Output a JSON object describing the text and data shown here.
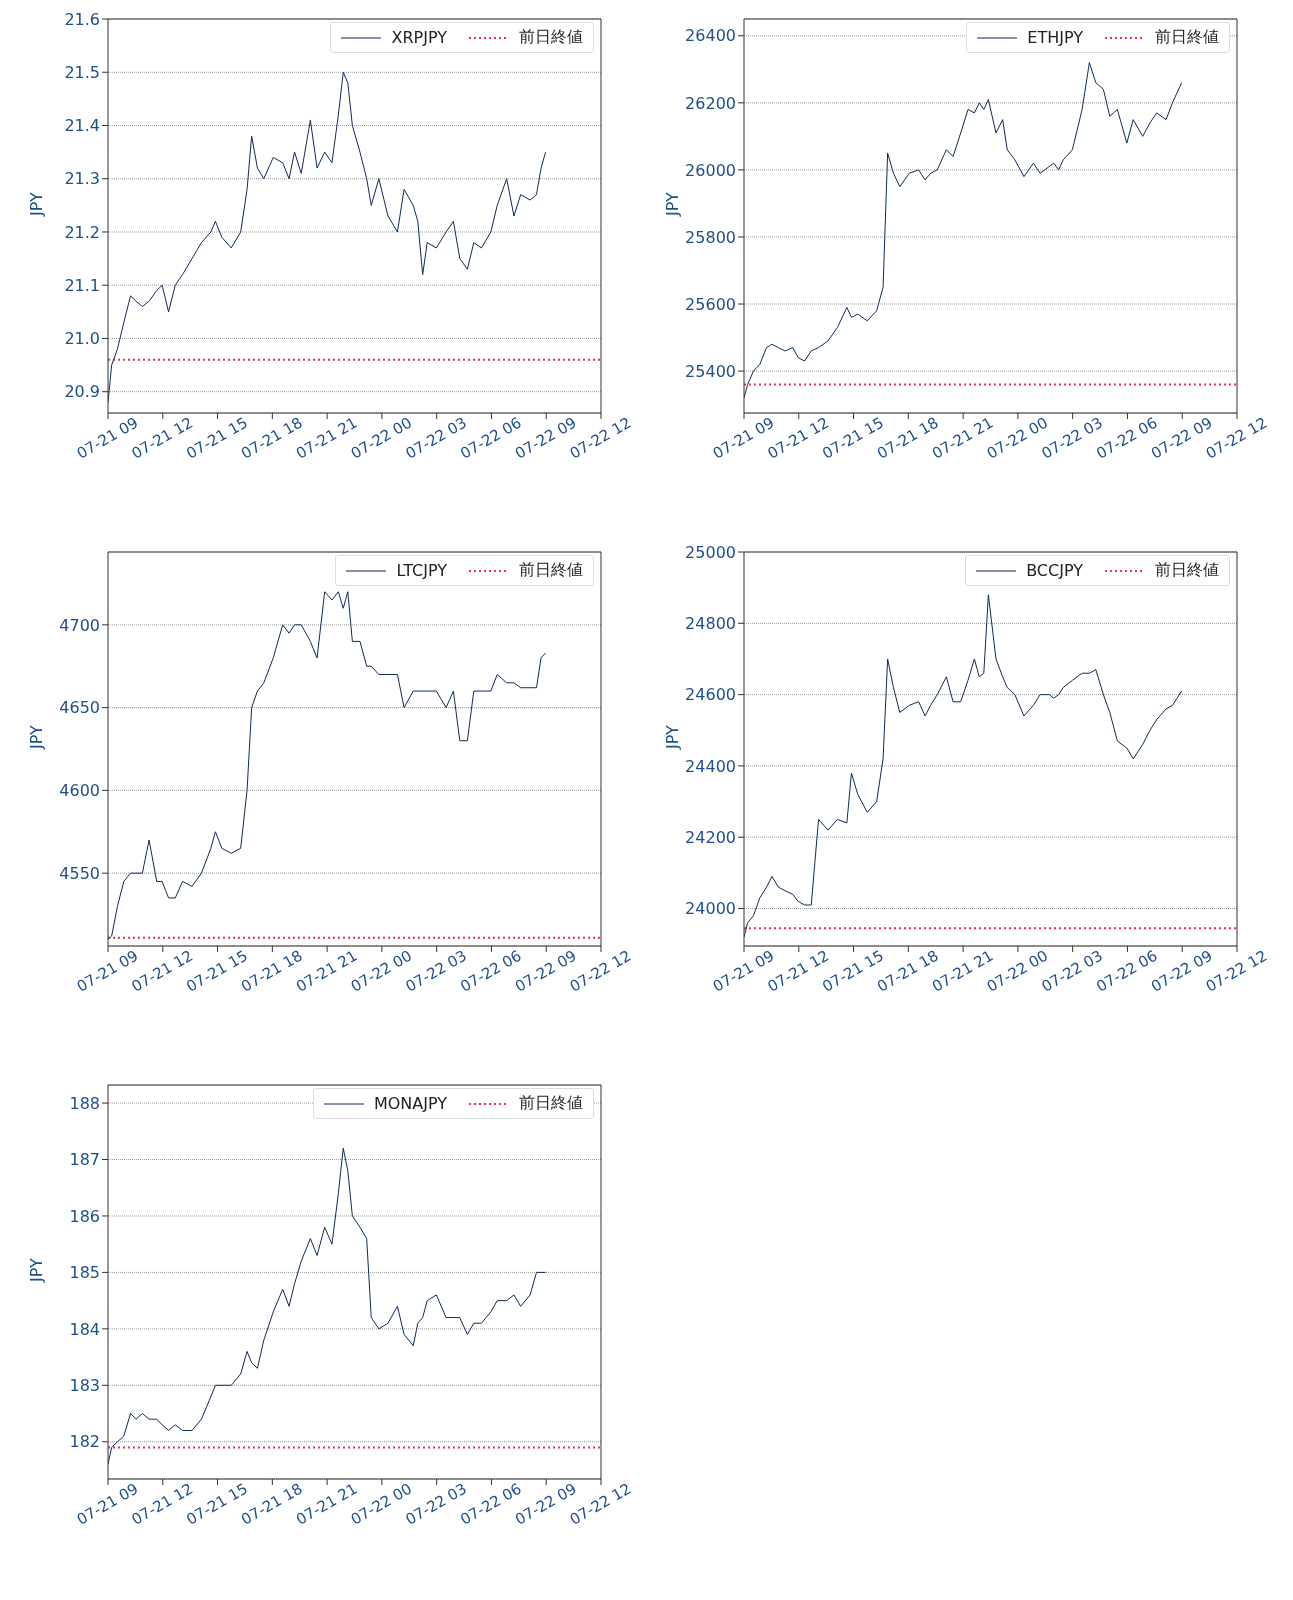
{
  "chart_data": [
    {
      "type": "line",
      "ylabel": "JPY",
      "legend": "top right",
      "grid": "y",
      "xlim": [
        "--07-21T09:00",
        "--07-22T12:00"
      ],
      "xticks": [
        {
          "value": "--07-21T09:00",
          "label": "07-21 09"
        },
        {
          "value": "--07-21T12:00",
          "label": "07-21 12"
        },
        {
          "value": "--07-21T15:00",
          "label": "07-21 15"
        },
        {
          "value": "--07-21T18:00",
          "label": "07-21 18"
        },
        {
          "value": "--07-21T21:00",
          "label": "07-21 21"
        },
        {
          "value": "--07-22T00:00",
          "label": "07-22 00"
        },
        {
          "value": "--07-22T03:00",
          "label": "07-22 03"
        },
        {
          "value": "--07-22T06:00",
          "label": "07-22 06"
        },
        {
          "value": "--07-22T09:00",
          "label": "07-22 09"
        },
        {
          "value": "--07-22T12:00",
          "label": "07-22 12"
        }
      ],
      "ylim": [
        20.86,
        21.6
      ],
      "yticks": [
        20.9,
        {
          "value": 21,
          "label": "21.0"
        },
        21.1,
        21.2,
        21.3,
        21.4,
        21.5,
        21.6
      ],
      "x": [
        "--07-21T09:00",
        "--07-21T09:12",
        "--07-21T09:31",
        "--07-21T09:52",
        "--07-21T10:14",
        "--07-21T10:32",
        "--07-21T10:53",
        "--07-21T11:15",
        "--07-21T11:40",
        "--07-21T11:58",
        "--07-21T12:19",
        "--07-21T12:41",
        "--07-21T13:05",
        "--07-21T13:36",
        "--07-21T14:07",
        "--07-21T14:38",
        "--07-21T14:53",
        "--07-21T15:14",
        "--07-21T15:45",
        "--07-21T16:16",
        "--07-21T16:37",
        "--07-21T16:52",
        "--07-21T17:11",
        "--07-21T17:32",
        "--07-21T18:03",
        "--07-21T18:34",
        "--07-21T18:55",
        "--07-21T19:13",
        "--07-21T19:35",
        "--07-21T20:05",
        "--07-21T20:27",
        "--07-21T20:52",
        "--07-21T21:16",
        "--07-21T21:37",
        "--07-21T21:53",
        "--07-21T22:08",
        "--07-21T22:23",
        "--07-21T22:48",
        "--07-21T23:10",
        "--07-21T23:25",
        "--07-21T23:50",
        "--07-22T00:20",
        "--07-22T00:51",
        "--07-22T01:13",
        "--07-22T01:43",
        "--07-22T01:58",
        "--07-22T02:14",
        "--07-22T02:29",
        "--07-22T02:59",
        "--07-22T03:31",
        "--07-22T03:55",
        "--07-22T04:16",
        "--07-22T04:41",
        "--07-22T05:02",
        "--07-22T05:27",
        "--07-22T05:58",
        "--07-22T06:19",
        "--07-22T06:50",
        "--07-22T07:14",
        "--07-22T07:36",
        "--07-22T08:07",
        "--07-22T08:28",
        "--07-22T08:43",
        "--07-22T08:58"
      ],
      "series": [
        {
          "name": "XRPJPY",
          "color": "#0d2b5a",
          "values": [
            20.88,
            20.95,
            20.98,
            21.03,
            21.08,
            21.07,
            21.06,
            21.07,
            21.09,
            21.1,
            21.05,
            21.1,
            21.12,
            21.15,
            21.18,
            21.2,
            21.22,
            21.19,
            21.17,
            21.2,
            21.28,
            21.38,
            21.32,
            21.3,
            21.34,
            21.33,
            21.3,
            21.35,
            21.31,
            21.41,
            21.32,
            21.35,
            21.33,
            21.42,
            21.5,
            21.48,
            21.4,
            21.35,
            21.3,
            21.25,
            21.3,
            21.23,
            21.2,
            21.28,
            21.25,
            21.22,
            21.12,
            21.18,
            21.17,
            21.2,
            21.22,
            21.15,
            21.13,
            21.18,
            21.17,
            21.2,
            21.25,
            21.3,
            21.23,
            21.27,
            21.26,
            21.27,
            21.32,
            21.35
          ]
        }
      ],
      "ref_lines": [
        {
          "axis": "y",
          "value": 20.96,
          "label": "前日終値",
          "color": "#e8305a",
          "line_style": "dotted"
        }
      ]
    },
    {
      "type": "line",
      "ylabel": "JPY",
      "legend": "top right",
      "grid": "y",
      "xlim": [
        "--07-21T09:00",
        "--07-22T12:00"
      ],
      "xticks": [
        {
          "value": "--07-21T09:00",
          "label": "07-21 09"
        },
        {
          "value": "--07-21T12:00",
          "label": "07-21 12"
        },
        {
          "value": "--07-21T15:00",
          "label": "07-21 15"
        },
        {
          "value": "--07-21T18:00",
          "label": "07-21 18"
        },
        {
          "value": "--07-21T21:00",
          "label": "07-21 21"
        },
        {
          "value": "--07-22T00:00",
          "label": "07-22 00"
        },
        {
          "value": "--07-22T03:00",
          "label": "07-22 03"
        },
        {
          "value": "--07-22T06:00",
          "label": "07-22 06"
        },
        {
          "value": "--07-22T09:00",
          "label": "07-22 09"
        },
        {
          "value": "--07-22T12:00",
          "label": "07-22 12"
        }
      ],
      "ylim": [
        25275,
        26450
      ],
      "yticks": [
        25400,
        25600,
        25800,
        26000,
        26200,
        26400
      ],
      "x": [
        "--07-21T09:00",
        "--07-21T09:12",
        "--07-21T09:31",
        "--07-21T09:52",
        "--07-21T10:14",
        "--07-21T10:32",
        "--07-21T10:53",
        "--07-21T11:15",
        "--07-21T11:40",
        "--07-21T11:58",
        "--07-21T12:19",
        "--07-21T12:41",
        "--07-21T13:05",
        "--07-21T13:36",
        "--07-21T14:07",
        "--07-21T14:38",
        "--07-21T14:53",
        "--07-21T15:14",
        "--07-21T15:45",
        "--07-21T16:16",
        "--07-21T16:37",
        "--07-21T16:52",
        "--07-21T17:11",
        "--07-21T17:32",
        "--07-21T18:03",
        "--07-21T18:34",
        "--07-21T18:55",
        "--07-21T19:13",
        "--07-21T19:35",
        "--07-21T20:05",
        "--07-21T20:27",
        "--07-21T20:52",
        "--07-21T21:16",
        "--07-21T21:37",
        "--07-21T21:53",
        "--07-21T22:08",
        "--07-21T22:23",
        "--07-21T22:48",
        "--07-21T23:10",
        "--07-21T23:25",
        "--07-21T23:50",
        "--07-22T00:20",
        "--07-22T00:51",
        "--07-22T01:13",
        "--07-22T01:43",
        "--07-22T01:58",
        "--07-22T02:14",
        "--07-22T02:29",
        "--07-22T02:59",
        "--07-22T03:31",
        "--07-22T03:55",
        "--07-22T04:16",
        "--07-22T04:41",
        "--07-22T05:02",
        "--07-22T05:27",
        "--07-22T05:58",
        "--07-22T06:19",
        "--07-22T06:50",
        "--07-22T07:14",
        "--07-22T07:36",
        "--07-22T08:07",
        "--07-22T08:28",
        "--07-22T08:43",
        "--07-22T08:58"
      ],
      "series": [
        {
          "name": "ETHJPY",
          "color": "#0d2b5a",
          "values": [
            25320,
            25360,
            25400,
            25420,
            25470,
            25480,
            25470,
            25460,
            25470,
            25440,
            25430,
            25460,
            25470,
            25490,
            25530,
            25590,
            25560,
            25570,
            25550,
            25580,
            25650,
            26050,
            25990,
            25950,
            25990,
            26000,
            25970,
            25990,
            26000,
            26060,
            26040,
            26110,
            26180,
            26170,
            26200,
            26180,
            26210,
            26110,
            26150,
            26060,
            26030,
            25980,
            26020,
            25990,
            26010,
            26020,
            26000,
            26030,
            26060,
            26180,
            26320,
            26260,
            26240,
            26160,
            26180,
            26080,
            26150,
            26100,
            26140,
            26170,
            26150,
            26200,
            26230,
            26260
          ]
        }
      ],
      "ref_lines": [
        {
          "axis": "y",
          "value": 25360,
          "label": "前日終値",
          "color": "#e8305a",
          "line_style": "dotted"
        }
      ]
    },
    {
      "type": "line",
      "ylabel": "JPY",
      "legend": "top right",
      "grid": "y",
      "xlim": [
        "--07-21T09:00",
        "--07-22T12:00"
      ],
      "xticks": [
        {
          "value": "--07-21T09:00",
          "label": "07-21 09"
        },
        {
          "value": "--07-21T12:00",
          "label": "07-21 12"
        },
        {
          "value": "--07-21T15:00",
          "label": "07-21 15"
        },
        {
          "value": "--07-21T18:00",
          "label": "07-21 18"
        },
        {
          "value": "--07-21T21:00",
          "label": "07-21 21"
        },
        {
          "value": "--07-22T00:00",
          "label": "07-22 00"
        },
        {
          "value": "--07-22T03:00",
          "label": "07-22 03"
        },
        {
          "value": "--07-22T06:00",
          "label": "07-22 06"
        },
        {
          "value": "--07-22T09:00",
          "label": "07-22 09"
        },
        {
          "value": "--07-22T12:00",
          "label": "07-22 12"
        }
      ],
      "ylim": [
        4506,
        4744
      ],
      "yticks": [
        4550,
        4600,
        4650,
        4700
      ],
      "x": [
        "--07-21T09:00",
        "--07-21T09:12",
        "--07-21T09:31",
        "--07-21T09:52",
        "--07-21T10:14",
        "--07-21T10:32",
        "--07-21T10:53",
        "--07-21T11:15",
        "--07-21T11:40",
        "--07-21T11:58",
        "--07-21T12:19",
        "--07-21T12:41",
        "--07-21T13:05",
        "--07-21T13:36",
        "--07-21T14:07",
        "--07-21T14:38",
        "--07-21T14:53",
        "--07-21T15:14",
        "--07-21T15:45",
        "--07-21T16:16",
        "--07-21T16:37",
        "--07-21T16:52",
        "--07-21T17:11",
        "--07-21T17:32",
        "--07-21T18:03",
        "--07-21T18:34",
        "--07-21T18:55",
        "--07-21T19:13",
        "--07-21T19:35",
        "--07-21T20:05",
        "--07-21T20:27",
        "--07-21T20:52",
        "--07-21T21:16",
        "--07-21T21:37",
        "--07-21T21:53",
        "--07-21T22:08",
        "--07-21T22:23",
        "--07-21T22:48",
        "--07-21T23:10",
        "--07-21T23:25",
        "--07-21T23:50",
        "--07-22T00:20",
        "--07-22T00:51",
        "--07-22T01:13",
        "--07-22T01:43",
        "--07-22T01:58",
        "--07-22T02:14",
        "--07-22T02:29",
        "--07-22T02:59",
        "--07-22T03:31",
        "--07-22T03:55",
        "--07-22T04:16",
        "--07-22T04:41",
        "--07-22T05:02",
        "--07-22T05:27",
        "--07-22T05:58",
        "--07-22T06:19",
        "--07-22T06:50",
        "--07-22T07:14",
        "--07-22T07:36",
        "--07-22T08:07",
        "--07-22T08:28",
        "--07-22T08:43",
        "--07-22T08:58"
      ],
      "series": [
        {
          "name": "LTCJPY",
          "color": "#0d2b5a",
          "values": [
            4510,
            4512,
            4530,
            4545,
            4550,
            4550,
            4550,
            4570,
            4545,
            4545,
            4535,
            4535,
            4545,
            4542,
            4550,
            4565,
            4575,
            4565,
            4562,
            4565,
            4600,
            4650,
            4660,
            4665,
            4680,
            4700,
            4695,
            4700,
            4700,
            4690,
            4680,
            4720,
            4715,
            4720,
            4710,
            4720,
            4690,
            4690,
            4675,
            4675,
            4670,
            4670,
            4670,
            4650,
            4660,
            4660,
            4660,
            4660,
            4660,
            4650,
            4660,
            4630,
            4630,
            4660,
            4660,
            4660,
            4670,
            4665,
            4665,
            4662,
            4662,
            4662,
            4680,
            4683
          ]
        }
      ],
      "ref_lines": [
        {
          "axis": "y",
          "value": 4511,
          "label": "前日終値",
          "color": "#e8305a",
          "line_style": "dotted"
        }
      ]
    },
    {
      "type": "line",
      "ylabel": "JPY",
      "legend": "top right",
      "grid": "y",
      "xlim": [
        "--07-21T09:00",
        "--07-22T12:00"
      ],
      "xticks": [
        {
          "value": "--07-21T09:00",
          "label": "07-21 09"
        },
        {
          "value": "--07-21T12:00",
          "label": "07-21 12"
        },
        {
          "value": "--07-21T15:00",
          "label": "07-21 15"
        },
        {
          "value": "--07-21T18:00",
          "label": "07-21 18"
        },
        {
          "value": "--07-21T21:00",
          "label": "07-21 21"
        },
        {
          "value": "--07-22T00:00",
          "label": "07-22 00"
        },
        {
          "value": "--07-22T03:00",
          "label": "07-22 03"
        },
        {
          "value": "--07-22T06:00",
          "label": "07-22 06"
        },
        {
          "value": "--07-22T09:00",
          "label": "07-22 09"
        },
        {
          "value": "--07-22T12:00",
          "label": "07-22 12"
        }
      ],
      "ylim": [
        23895,
        25000
      ],
      "yticks": [
        24000,
        24200,
        24400,
        24600,
        24800,
        25000
      ],
      "x": [
        "--07-21T09:00",
        "--07-21T09:12",
        "--07-21T09:31",
        "--07-21T09:52",
        "--07-21T10:14",
        "--07-21T10:32",
        "--07-21T10:53",
        "--07-21T11:15",
        "--07-21T11:40",
        "--07-21T11:58",
        "--07-21T12:19",
        "--07-21T12:41",
        "--07-21T13:05",
        "--07-21T13:36",
        "--07-21T14:07",
        "--07-21T14:38",
        "--07-21T14:53",
        "--07-21T15:14",
        "--07-21T15:45",
        "--07-21T16:16",
        "--07-21T16:37",
        "--07-21T16:52",
        "--07-21T17:11",
        "--07-21T17:32",
        "--07-21T18:03",
        "--07-21T18:34",
        "--07-21T18:55",
        "--07-21T19:13",
        "--07-21T19:35",
        "--07-21T20:05",
        "--07-21T20:27",
        "--07-21T20:52",
        "--07-21T21:16",
        "--07-21T21:37",
        "--07-21T21:53",
        "--07-21T22:08",
        "--07-21T22:23",
        "--07-21T22:48",
        "--07-21T23:10",
        "--07-21T23:25",
        "--07-21T23:50",
        "--07-22T00:20",
        "--07-22T00:51",
        "--07-22T01:13",
        "--07-22T01:43",
        "--07-22T01:58",
        "--07-22T02:14",
        "--07-22T02:29",
        "--07-22T02:59",
        "--07-22T03:31",
        "--07-22T03:55",
        "--07-22T04:16",
        "--07-22T04:41",
        "--07-22T05:02",
        "--07-22T05:27",
        "--07-22T05:58",
        "--07-22T06:19",
        "--07-22T06:50",
        "--07-22T07:14",
        "--07-22T07:36",
        "--07-22T08:07",
        "--07-22T08:28",
        "--07-22T08:43",
        "--07-22T08:58"
      ],
      "series": [
        {
          "name": "BCCJPY",
          "color": "#0d2b5a",
          "values": [
            23920,
            23960,
            23980,
            24030,
            24060,
            24090,
            24060,
            24050,
            24040,
            24020,
            24010,
            24010,
            24250,
            24220,
            24250,
            24240,
            24380,
            24320,
            24270,
            24300,
            24420,
            24700,
            24620,
            24550,
            24570,
            24580,
            24540,
            24570,
            24600,
            24650,
            24580,
            24580,
            24640,
            24700,
            24650,
            24660,
            24880,
            24700,
            24650,
            24620,
            24600,
            24540,
            24570,
            24600,
            24600,
            24590,
            24600,
            24620,
            24640,
            24660,
            24660,
            24670,
            24600,
            24550,
            24470,
            24450,
            24420,
            24460,
            24500,
            24530,
            24560,
            24570,
            24590,
            24610
          ]
        }
      ],
      "ref_lines": [
        {
          "axis": "y",
          "value": 23945,
          "label": "前日終値",
          "color": "#e8305a",
          "line_style": "dotted"
        }
      ]
    },
    {
      "type": "line",
      "ylabel": "JPY",
      "legend": "top right",
      "grid": "y",
      "xlim": [
        "--07-21T09:00",
        "--07-22T12:00"
      ],
      "xticks": [
        {
          "value": "--07-21T09:00",
          "label": "07-21 09"
        },
        {
          "value": "--07-21T12:00",
          "label": "07-21 12"
        },
        {
          "value": "--07-21T15:00",
          "label": "07-21 15"
        },
        {
          "value": "--07-21T18:00",
          "label": "07-21 18"
        },
        {
          "value": "--07-21T21:00",
          "label": "07-21 21"
        },
        {
          "value": "--07-22T00:00",
          "label": "07-22 00"
        },
        {
          "value": "--07-22T03:00",
          "label": "07-22 03"
        },
        {
          "value": "--07-22T06:00",
          "label": "07-22 06"
        },
        {
          "value": "--07-22T09:00",
          "label": "07-22 09"
        },
        {
          "value": "--07-22T12:00",
          "label": "07-22 12"
        }
      ],
      "ylim": [
        181.34,
        188.32
      ],
      "yticks": [
        182,
        183,
        184,
        185,
        186,
        187,
        188
      ],
      "x": [
        "--07-21T09:00",
        "--07-21T09:12",
        "--07-21T09:31",
        "--07-21T09:52",
        "--07-21T10:14",
        "--07-21T10:32",
        "--07-21T10:53",
        "--07-21T11:15",
        "--07-21T11:40",
        "--07-21T11:58",
        "--07-21T12:19",
        "--07-21T12:41",
        "--07-21T13:05",
        "--07-21T13:36",
        "--07-21T14:07",
        "--07-21T14:38",
        "--07-21T14:53",
        "--07-21T15:14",
        "--07-21T15:45",
        "--07-21T16:16",
        "--07-21T16:37",
        "--07-21T16:52",
        "--07-21T17:11",
        "--07-21T17:32",
        "--07-21T18:03",
        "--07-21T18:34",
        "--07-21T18:55",
        "--07-21T19:13",
        "--07-21T19:35",
        "--07-21T20:05",
        "--07-21T20:27",
        "--07-21T20:52",
        "--07-21T21:16",
        "--07-21T21:37",
        "--07-21T21:53",
        "--07-21T22:08",
        "--07-21T22:23",
        "--07-21T22:48",
        "--07-21T23:10",
        "--07-21T23:25",
        "--07-21T23:50",
        "--07-22T00:20",
        "--07-22T00:51",
        "--07-22T01:13",
        "--07-22T01:43",
        "--07-22T01:58",
        "--07-22T02:14",
        "--07-22T02:29",
        "--07-22T02:59",
        "--07-22T03:31",
        "--07-22T03:55",
        "--07-22T04:16",
        "--07-22T04:41",
        "--07-22T05:02",
        "--07-22T05:27",
        "--07-22T05:58",
        "--07-22T06:19",
        "--07-22T06:50",
        "--07-22T07:14",
        "--07-22T07:36",
        "--07-22T08:07",
        "--07-22T08:28",
        "--07-22T08:43",
        "--07-22T08:58"
      ],
      "series": [
        {
          "name": "MONAJPY",
          "color": "#0d2b5a",
          "values": [
            181.6,
            181.9,
            182.0,
            182.1,
            182.5,
            182.4,
            182.5,
            182.4,
            182.4,
            182.3,
            182.2,
            182.3,
            182.2,
            182.2,
            182.4,
            182.8,
            183.0,
            183.0,
            183.0,
            183.2,
            183.6,
            183.4,
            183.3,
            183.8,
            184.3,
            184.7,
            184.4,
            184.8,
            185.2,
            185.6,
            185.3,
            185.8,
            185.5,
            186.4,
            187.2,
            186.8,
            186.0,
            185.8,
            185.6,
            184.2,
            184.0,
            184.1,
            184.4,
            183.9,
            183.7,
            184.1,
            184.2,
            184.5,
            184.6,
            184.2,
            184.2,
            184.2,
            183.9,
            184.1,
            184.1,
            184.3,
            184.5,
            184.5,
            184.6,
            184.4,
            184.6,
            185.0,
            185.0,
            185.0
          ]
        }
      ],
      "ref_lines": [
        {
          "axis": "y",
          "value": 181.9,
          "label": "前日終値",
          "color": "#e8305a",
          "line_style": "dotted"
        }
      ]
    }
  ]
}
